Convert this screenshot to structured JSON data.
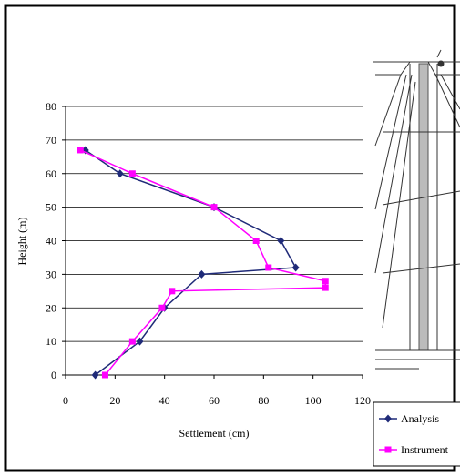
{
  "chart_data": {
    "type": "line",
    "xlabel": "Settlement (cm)",
    "ylabel": "Height (m)",
    "xlim": [
      0,
      120
    ],
    "xticks": [
      0,
      20,
      40,
      60,
      80,
      100,
      120
    ],
    "ylim": [
      0,
      80
    ],
    "yticks": [
      0,
      10,
      20,
      30,
      40,
      50,
      60,
      70,
      80
    ],
    "grid": true,
    "legend": "lower right",
    "series": [
      {
        "name": "Analysis",
        "color": "#1f2a78",
        "marker": "diamond",
        "x": [
          12,
          30,
          40,
          55,
          93,
          87,
          60,
          22,
          8
        ],
        "values": [
          0,
          10,
          20,
          30,
          32,
          40,
          50,
          60,
          67
        ]
      },
      {
        "name": "Instrument",
        "color": "#ff00ff",
        "marker": "square",
        "x": [
          16,
          27,
          39,
          43,
          105,
          105,
          82,
          77,
          60,
          27,
          6
        ],
        "values": [
          0,
          10,
          20,
          25,
          26,
          28,
          32,
          40,
          50,
          60,
          67
        ]
      }
    ]
  }
}
